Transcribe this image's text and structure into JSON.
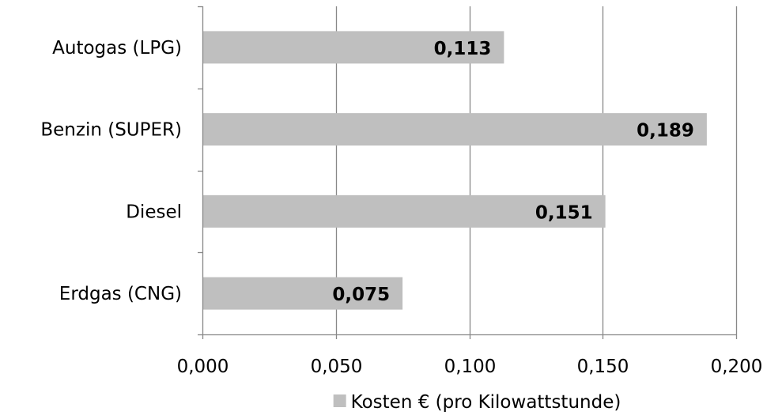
{
  "chart_data": {
    "type": "bar",
    "orientation": "horizontal",
    "categories": [
      "Autogas (LPG)",
      "Benzin (SUPER)",
      "Diesel",
      "Erdgas (CNG)"
    ],
    "series": [
      {
        "name": "Kosten € (pro Kilowattstunde)",
        "values": [
          0.113,
          0.189,
          0.151,
          0.075
        ],
        "value_labels": [
          "0,113",
          "0,189",
          "0,151",
          "0,075"
        ],
        "color": "#bfbfbf"
      }
    ],
    "xlim": [
      0,
      0.2
    ],
    "x_ticks": [
      0,
      0.05,
      0.1,
      0.15,
      0.2
    ],
    "x_tick_labels": [
      "0,000",
      "0,050",
      "0,100",
      "0,150",
      "0,200"
    ],
    "grid": true,
    "legend_position": "bottom",
    "axis_color": "#888888",
    "grid_color": "#888888"
  }
}
